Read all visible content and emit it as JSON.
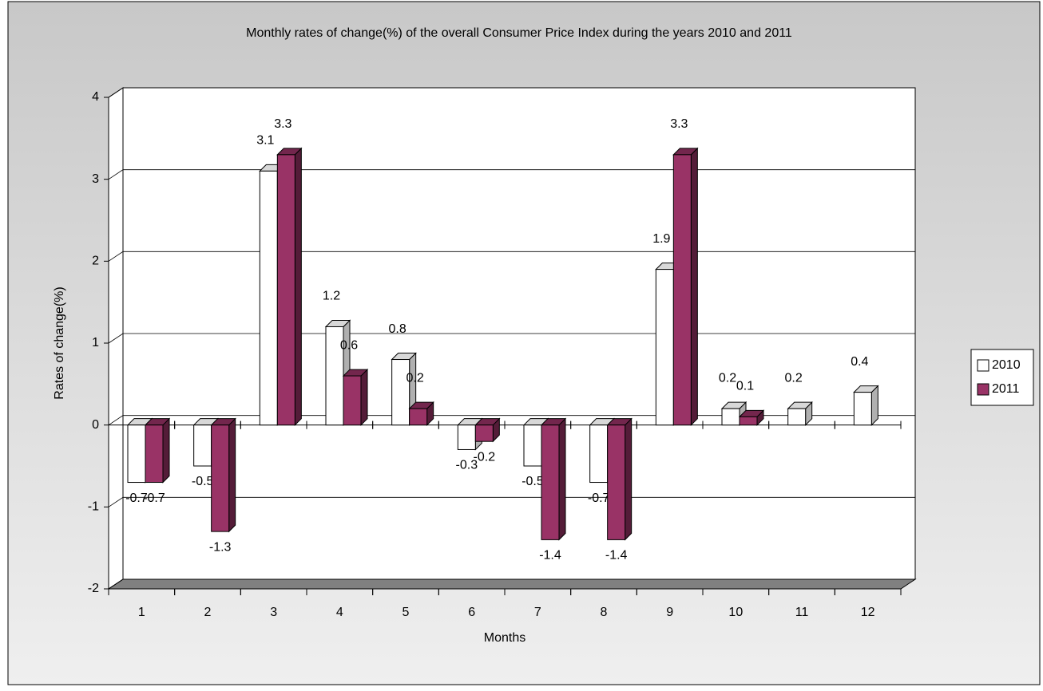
{
  "chart_data": {
    "type": "bar",
    "title": "Monthly rates of change(%) of the overall Consumer Price Index during the years 2010 and 2011",
    "x_label": "Months",
    "y_label": "Rates of change(%)",
    "categories": [
      "1",
      "2",
      "3",
      "4",
      "5",
      "6",
      "7",
      "8",
      "9",
      "10",
      "11",
      "12"
    ],
    "series": [
      {
        "name": "2010",
        "color": "#ffffff",
        "values": [
          -0.7,
          -0.5,
          3.1,
          1.2,
          0.8,
          -0.3,
          -0.5,
          -0.7,
          1.9,
          0.2,
          0.2,
          0.4
        ]
      },
      {
        "name": "2011",
        "color": "#993366",
        "values": [
          -0.7,
          -1.3,
          3.3,
          0.6,
          0.2,
          -0.2,
          -1.4,
          -1.4,
          3.3,
          0.1,
          null,
          null
        ]
      }
    ],
    "ylim": [
      -2,
      4
    ],
    "yticks": [
      -2,
      -1,
      0,
      1,
      2,
      3,
      4
    ],
    "grid": true,
    "legend": "right"
  }
}
